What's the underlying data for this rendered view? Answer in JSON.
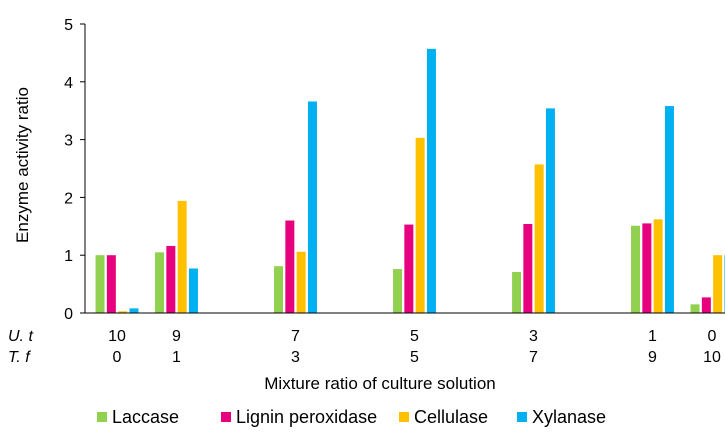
{
  "chart_data": {
    "type": "bar",
    "title": "",
    "xlabel": "Mixture ratio of culture solution",
    "ylabel": "Enzyme activity ratio",
    "ylim": [
      0,
      5
    ],
    "yticks": [
      "0",
      "1",
      "2",
      "3",
      "4",
      "5"
    ],
    "grid": false,
    "legend_position": "bottom",
    "row_labels": [
      "U. t",
      "T. f"
    ],
    "categories": [
      {
        "ut": "10",
        "tf": "0"
      },
      {
        "ut": "9",
        "tf": "1"
      },
      {
        "ut": "7",
        "tf": "3"
      },
      {
        "ut": "5",
        "tf": "5"
      },
      {
        "ut": "3",
        "tf": "7"
      },
      {
        "ut": "1",
        "tf": "9"
      },
      {
        "ut": "0",
        "tf": "10"
      }
    ],
    "x": [
      10,
      9,
      7,
      5,
      3,
      1,
      0
    ],
    "series": [
      {
        "name": "Laccase",
        "color": "#92D050",
        "values": [
          1.0,
          1.05,
          0.81,
          0.76,
          0.71,
          1.51,
          0.15
        ]
      },
      {
        "name": "Lignin peroxidase",
        "color": "#E6007E",
        "values": [
          1.0,
          1.16,
          1.6,
          1.53,
          1.54,
          1.55,
          0.27
        ]
      },
      {
        "name": "Cellulase",
        "color": "#FFC000",
        "values": [
          0.03,
          1.94,
          1.06,
          3.03,
          2.57,
          1.62,
          1.0
        ]
      },
      {
        "name": "Xylanase",
        "color": "#00B0F0",
        "values": [
          0.08,
          0.77,
          3.66,
          4.57,
          3.54,
          3.58,
          1.0
        ]
      }
    ]
  }
}
